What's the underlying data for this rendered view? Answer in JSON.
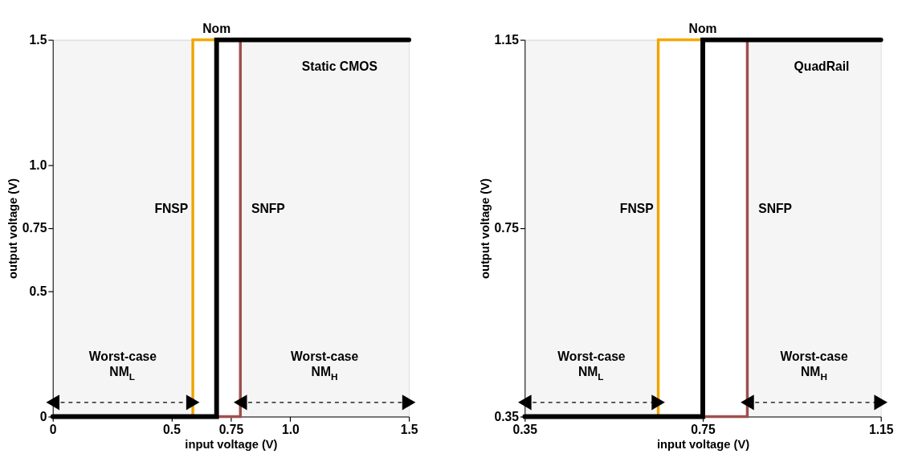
{
  "chart_data": [
    {
      "type": "line",
      "xlabel": "input voltage (V)",
      "ylabel": "output voltage (V)",
      "xlim": [
        0,
        1.5
      ],
      "xticks": [
        0,
        0.5,
        0.75,
        {
          "value": 1,
          "label": "1.0"
        },
        1.5
      ],
      "ylim": [
        0,
        1.5
      ],
      "yticks": [
        0,
        0.5,
        0.75,
        {
          "value": 1,
          "label": "1.0"
        },
        1.5
      ],
      "grid": false,
      "legend": false,
      "marker": "none",
      "line_style": "solid",
      "series": [
        {
          "name": "FNSP",
          "color": "#f5a800",
          "x": [
            0,
            0.59,
            0.59,
            0.69
          ],
          "values": [
            0,
            0,
            1.5,
            1.5
          ]
        },
        {
          "name": "Nom",
          "color": "#000000",
          "x": [
            0,
            0.69,
            0.69,
            1.5
          ],
          "values": [
            0,
            0,
            1.5,
            1.5
          ]
        },
        {
          "name": "SNFP",
          "color": "#a05050",
          "x": [
            0.69,
            0.79,
            0.79,
            1.5
          ],
          "values": [
            0,
            0,
            1.5,
            1.5
          ]
        }
      ],
      "bands": [
        {
          "axis": "x",
          "from": 0,
          "to": 0.59,
          "label": "Worst-case NM$_{L}$",
          "color": "#000000"
        },
        {
          "axis": "x",
          "from": 0.79,
          "to": 1.5,
          "label": "Worst-case NM$_{H}$",
          "color": "#000000"
        }
      ],
      "annotations": [
        "Static CMOS"
      ]
    },
    {
      "type": "line",
      "xlabel": "input voltage (V)",
      "ylabel": "output voltage (V)",
      "xlim": [
        0.35,
        1.15
      ],
      "xticks": [
        0.35,
        0.75,
        1.15
      ],
      "ylim": [
        0.35,
        1.15
      ],
      "yticks": [
        0.35,
        0.75,
        1.15
      ],
      "grid": false,
      "legend": false,
      "marker": "none",
      "line_style": "solid",
      "series": [
        {
          "name": "FNSP",
          "color": "#f5a800",
          "x": [
            0.35,
            0.65,
            0.65,
            0.75
          ],
          "values": [
            0.35,
            0.35,
            1.15,
            1.15
          ]
        },
        {
          "name": "Nom",
          "color": "#000000",
          "x": [
            0.35,
            0.75,
            0.75,
            1.15
          ],
          "values": [
            0.35,
            0.35,
            1.15,
            1.15
          ]
        },
        {
          "name": "SNFP",
          "color": "#a05050",
          "x": [
            0.75,
            0.85,
            0.85,
            1.15
          ],
          "values": [
            0.35,
            0.35,
            1.15,
            1.15
          ]
        }
      ],
      "bands": [
        {
          "axis": "x",
          "from": 0.35,
          "to": 0.65,
          "label": "Worst-case NM$_{L}$",
          "color": "#000000"
        },
        {
          "axis": "x",
          "from": 0.85,
          "to": 1.15,
          "label": "Worst-case NM$_{H}$",
          "color": "#000000"
        }
      ],
      "annotations": [
        "QuadRail"
      ]
    }
  ]
}
